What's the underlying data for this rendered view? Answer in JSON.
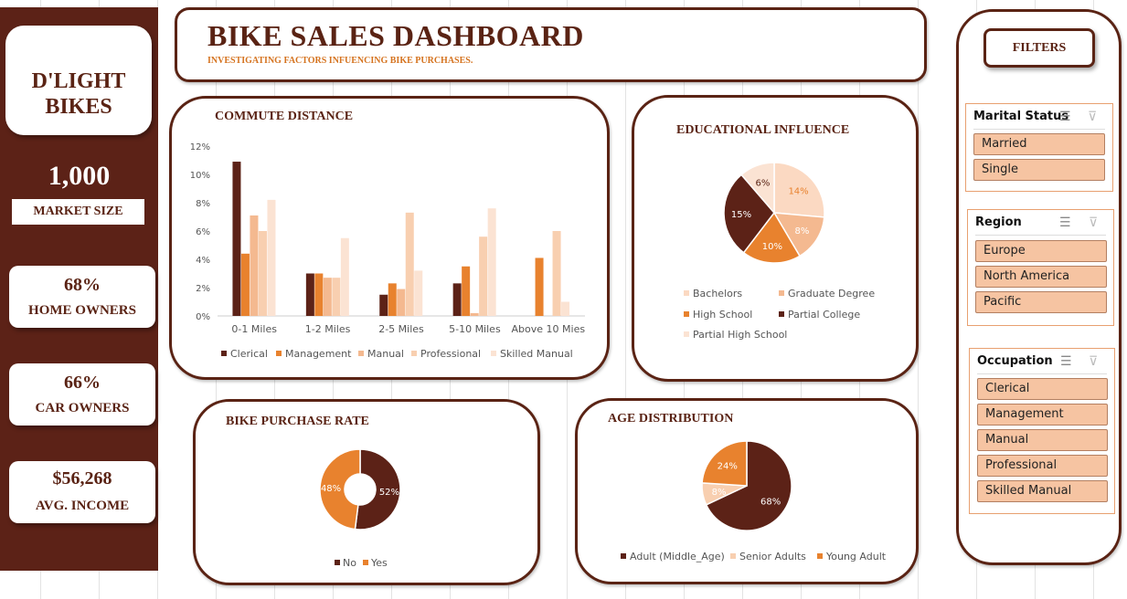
{
  "brand": {
    "line1": "D'LIGHT",
    "line2": "BIKES"
  },
  "kpis": {
    "market_size": {
      "value": "1,000",
      "label": "MARKET SIZE"
    },
    "home_owners": {
      "value": "68%",
      "label": "HOME OWNERS"
    },
    "car_owners": {
      "value": "66%",
      "label": "CAR OWNERS"
    },
    "avg_income": {
      "value": "$56,268",
      "label": "AVG. INCOME"
    }
  },
  "header": {
    "title": "BIKE SALES DASHBOARD",
    "subtitle": "INVESTIGATING FACTORS INFUENCING BIKE PURCHASES."
  },
  "filters": {
    "title": "FILTERS",
    "marital": {
      "title": "Marital Status",
      "items": [
        "Married",
        "Single"
      ]
    },
    "region": {
      "title": "Region",
      "items": [
        "Europe",
        "North America",
        "Pacific"
      ]
    },
    "occupation": {
      "title": "Occupation",
      "items": [
        "Clerical",
        "Management",
        "Manual",
        "Professional",
        "Skilled Manual"
      ]
    }
  },
  "colors": {
    "dark": "#5c2217",
    "orange": "#e8822e",
    "peach": "#f4b990",
    "light_peach": "#f8cfb0",
    "pale": "#fbe3d3"
  },
  "chart_data": [
    {
      "type": "bar",
      "title": "COMMUTE DISTANCE",
      "categories": [
        "0-1 Miles",
        "1-2 Miles",
        "2-5 Miles",
        "5-10 Miles",
        "Above 10 Mies"
      ],
      "ylim": [
        0,
        12
      ],
      "yticks": [
        "0%",
        "2%",
        "4%",
        "6%",
        "8%",
        "10%",
        "12%"
      ],
      "series": [
        {
          "name": "Clerical",
          "values": [
            10.9,
            3.0,
            1.5,
            2.3,
            0
          ],
          "color": "#5c2217"
        },
        {
          "name": "Management",
          "values": [
            4.4,
            3.0,
            2.3,
            3.5,
            4.1
          ],
          "color": "#e8822e"
        },
        {
          "name": "Manual",
          "values": [
            7.1,
            2.7,
            1.9,
            0.2,
            0
          ],
          "color": "#f4b990"
        },
        {
          "name": "Professional",
          "values": [
            6.0,
            2.7,
            7.3,
            5.6,
            6.0
          ],
          "color": "#f8cfb0"
        },
        {
          "name": "Skilled Manual",
          "values": [
            8.2,
            5.5,
            3.2,
            7.6,
            1.0
          ],
          "color": "#fbe3d3"
        }
      ]
    },
    {
      "type": "pie",
      "title": "EDUCATIONAL INFLUENCE",
      "slices": [
        {
          "name": "Bachelors",
          "value": 14,
          "label": "14%",
          "color": "#fbd9c2"
        },
        {
          "name": "Graduate Degree",
          "value": 8,
          "label": "8%",
          "color": "#f4b990"
        },
        {
          "name": "High School",
          "value": 10,
          "label": "10%",
          "color": "#e8822e"
        },
        {
          "name": "Partial College",
          "value": 15,
          "label": "15%",
          "color": "#5c2217"
        },
        {
          "name": "Partial High School",
          "value": 6,
          "label": "6%",
          "color": "#fbe3d3"
        }
      ]
    },
    {
      "type": "pie",
      "title": "BIKE PURCHASE RATE",
      "donut": true,
      "slices": [
        {
          "name": "No",
          "value": 52,
          "label": "52%",
          "color": "#5c2217"
        },
        {
          "name": "Yes",
          "value": 48,
          "label": "48%",
          "color": "#e8822e"
        }
      ]
    },
    {
      "type": "pie",
      "title": "AGE DISTRIBUTION",
      "slices": [
        {
          "name": "Adult (Middle_Age)",
          "value": 68,
          "label": "68%",
          "color": "#5c2217"
        },
        {
          "name": "Senior Adults",
          "value": 8,
          "label": "8%",
          "color": "#f8cfb0"
        },
        {
          "name": "Young Adult",
          "value": 24,
          "label": "24%",
          "color": "#e8822e"
        }
      ]
    }
  ]
}
